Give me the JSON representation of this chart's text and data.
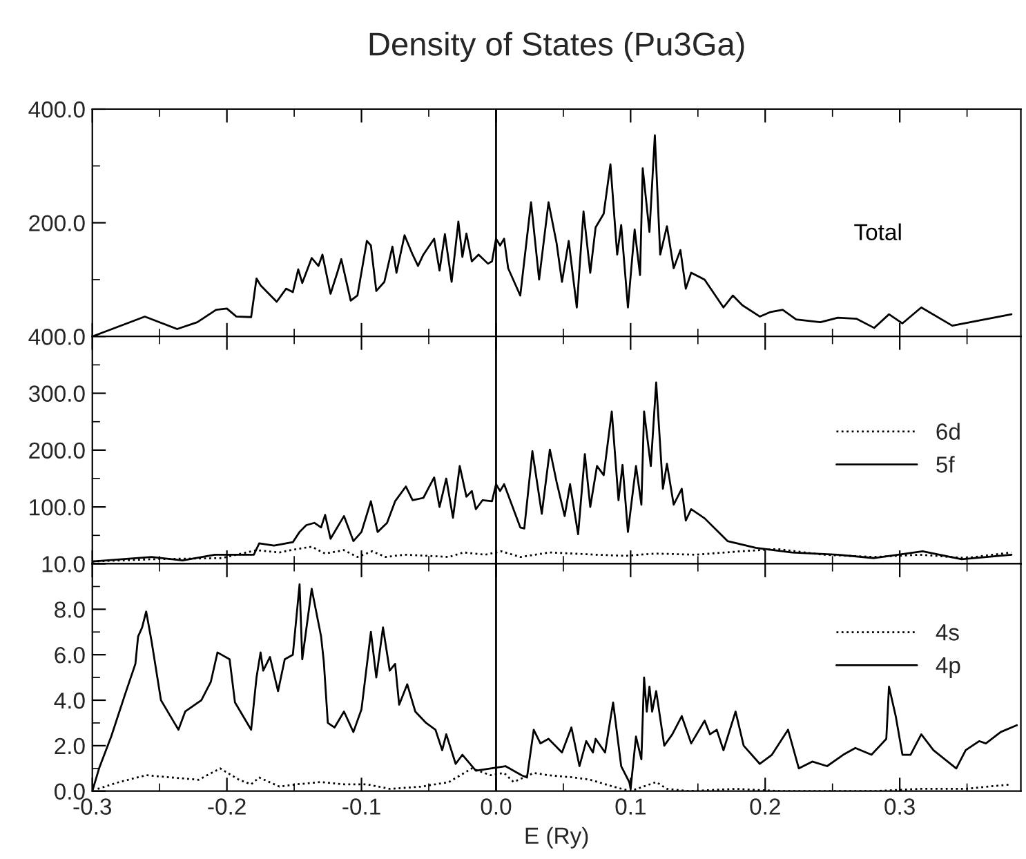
{
  "chart_data": [
    {
      "type": "line",
      "title": "Density of States (Pu3Ga)",
      "xlim": [
        -0.3,
        0.39
      ],
      "xticks": [
        {
          "value": -0.3,
          "label": null
        },
        {
          "value": -0.2,
          "label": null
        },
        {
          "value": -0.1,
          "label": null
        },
        {
          "value": 0,
          "label": null
        },
        {
          "value": 0.1,
          "label": null
        },
        {
          "value": 0.2,
          "label": null
        },
        {
          "value": 0.3,
          "label": null
        }
      ],
      "ylim": [
        0,
        400
      ],
      "yticks": [
        {
          "value": 0,
          "label": null
        },
        {
          "value": 200,
          "label": "200.0"
        },
        {
          "value": 400,
          "label": "400.0"
        }
      ],
      "tick_labels": "y",
      "legend": false,
      "ref_lines": [
        {
          "axis": "x",
          "value": 0,
          "color": "#000000"
        }
      ],
      "series": [
        {
          "name": "Total",
          "color": "#000000",
          "line_style": "solid",
          "x": [
            -0.3,
            -0.261,
            -0.237,
            -0.222,
            -0.208,
            -0.2,
            -0.193,
            -0.182,
            -0.178,
            -0.175,
            -0.163,
            -0.156,
            -0.151,
            -0.147,
            -0.144,
            -0.137,
            -0.132,
            -0.129,
            -0.123,
            -0.118,
            -0.115,
            -0.108,
            -0.103,
            -0.096,
            -0.093,
            -0.089,
            -0.083,
            -0.077,
            -0.074,
            -0.068,
            -0.062,
            -0.058,
            -0.054,
            -0.046,
            -0.042,
            -0.038,
            -0.033,
            -0.028,
            -0.025,
            -0.022,
            -0.018,
            -0.013,
            -0.006,
            -0.003,
            0.0,
            0.003,
            0.006,
            0.009,
            0.018,
            0.026,
            0.032,
            0.039,
            0.045,
            0.049,
            0.054,
            0.06,
            0.065,
            0.07,
            0.074,
            0.08,
            0.085,
            0.09,
            0.093,
            0.098,
            0.103,
            0.107,
            0.109,
            0.114,
            0.118,
            0.122,
            0.127,
            0.132,
            0.137,
            0.141,
            0.145,
            0.155,
            0.169,
            0.176,
            0.183,
            0.196,
            0.204,
            0.213,
            0.223,
            0.241,
            0.254,
            0.268,
            0.281,
            0.292,
            0.302,
            0.316,
            0.339,
            0.363,
            0.383
          ],
          "values": [
            0,
            35,
            13,
            25,
            47,
            49,
            35,
            34,
            102,
            90,
            61,
            84,
            78,
            118,
            94,
            138,
            124,
            144,
            75,
            112,
            136,
            63,
            72,
            168,
            160,
            80,
            96,
            158,
            112,
            178,
            144,
            124,
            144,
            172,
            116,
            180,
            96,
            202,
            140,
            181,
            132,
            144,
            128,
            132,
            172,
            160,
            172,
            120,
            72,
            236,
            100,
            236,
            164,
            96,
            168,
            51,
            220,
            112,
            192,
            216,
            303,
            144,
            196,
            51,
            188,
            108,
            296,
            184,
            354,
            144,
            194,
            120,
            152,
            84,
            112,
            100,
            51,
            72,
            55,
            35,
            43,
            47,
            30,
            25,
            33,
            31,
            15,
            39,
            23,
            51,
            19,
            30,
            39
          ]
        }
      ]
    },
    {
      "type": "line",
      "xlim": [
        -0.3,
        0.39
      ],
      "xticks": [
        {
          "value": -0.3,
          "label": null
        },
        {
          "value": -0.2,
          "label": null
        },
        {
          "value": -0.1,
          "label": null
        },
        {
          "value": 0,
          "label": null
        },
        {
          "value": 0.1,
          "label": null
        },
        {
          "value": 0.2,
          "label": null
        },
        {
          "value": 0.3,
          "label": null
        }
      ],
      "ylim": [
        0,
        400
      ],
      "yticks": [
        {
          "value": 0,
          "label": null
        },
        {
          "value": 100,
          "label": "100.0"
        },
        {
          "value": 200,
          "label": "200.0"
        },
        {
          "value": 300,
          "label": "300.0"
        },
        {
          "value": 400,
          "label": "400.0"
        }
      ],
      "tick_labels": "y",
      "legend": "right",
      "ref_lines": [
        {
          "axis": "x",
          "value": 0,
          "color": "#000000"
        }
      ],
      "series": [
        {
          "name": "6d",
          "color": "#000000",
          "line_style": "dotted",
          "x": [
            -0.3,
            -0.256,
            -0.204,
            -0.178,
            -0.161,
            -0.148,
            -0.137,
            -0.127,
            -0.113,
            -0.103,
            -0.092,
            -0.082,
            -0.068,
            -0.051,
            -0.035,
            -0.024,
            -0.008,
            0.004,
            0.018,
            0.04,
            0.074,
            0.096,
            0.118,
            0.148,
            0.182,
            0.209,
            0.243,
            0.281,
            0.315,
            0.349,
            0.383
          ],
          "values": [
            4,
            8,
            10,
            24,
            20,
            26,
            30,
            18,
            24,
            12,
            22,
            12,
            16,
            14,
            12,
            20,
            16,
            22,
            12,
            20,
            16,
            14,
            18,
            16,
            22,
            26,
            16,
            12,
            16,
            10,
            20
          ]
        },
        {
          "name": "5f",
          "color": "#000000",
          "line_style": "solid",
          "x": [
            -0.3,
            -0.256,
            -0.233,
            -0.209,
            -0.18,
            -0.176,
            -0.165,
            -0.151,
            -0.146,
            -0.141,
            -0.135,
            -0.13,
            -0.127,
            -0.123,
            -0.113,
            -0.106,
            -0.1,
            -0.093,
            -0.088,
            -0.081,
            -0.075,
            -0.067,
            -0.062,
            -0.054,
            -0.046,
            -0.042,
            -0.037,
            -0.032,
            -0.027,
            -0.022,
            -0.018,
            -0.015,
            -0.01,
            -0.003,
            0.0,
            0.003,
            0.006,
            0.018,
            0.021,
            0.027,
            0.034,
            0.04,
            0.045,
            0.051,
            0.055,
            0.061,
            0.066,
            0.07,
            0.075,
            0.08,
            0.086,
            0.091,
            0.094,
            0.098,
            0.104,
            0.108,
            0.11,
            0.115,
            0.119,
            0.124,
            0.127,
            0.132,
            0.138,
            0.141,
            0.145,
            0.155,
            0.172,
            0.193,
            0.22,
            0.254,
            0.281,
            0.317,
            0.346,
            0.383
          ],
          "values": [
            4,
            12,
            6,
            16,
            16,
            36,
            32,
            38,
            56,
            68,
            72,
            64,
            86,
            44,
            84,
            40,
            56,
            110,
            56,
            72,
            110,
            136,
            112,
            116,
            152,
            100,
            150,
            81,
            172,
            118,
            128,
            96,
            112,
            110,
            140,
            128,
            140,
            64,
            62,
            198,
            88,
            201,
            144,
            84,
            140,
            52,
            193,
            100,
            172,
            156,
            268,
            112,
            174,
            56,
            172,
            104,
            268,
            172,
            319,
            132,
            176,
            104,
            132,
            76,
            96,
            80,
            40,
            28,
            20,
            16,
            10,
            22,
            8,
            16
          ]
        }
      ]
    },
    {
      "type": "line",
      "xlabel": "E (Ry)",
      "xlim": [
        -0.3,
        0.39
      ],
      "xticks": [
        {
          "value": -0.3,
          "label": "-0.3"
        },
        {
          "value": -0.2,
          "label": "-0.2"
        },
        {
          "value": -0.1,
          "label": "-0.1"
        },
        {
          "value": 0,
          "label": "0.0"
        },
        {
          "value": 0.1,
          "label": "0.1"
        },
        {
          "value": 0.2,
          "label": "0.2"
        },
        {
          "value": 0.3,
          "label": "0.3"
        }
      ],
      "ylim": [
        0,
        10
      ],
      "yticks": [
        {
          "value": 0,
          "label": "0.0"
        },
        {
          "value": 2,
          "label": "2.0"
        },
        {
          "value": 4,
          "label": "4.0"
        },
        {
          "value": 6,
          "label": "6.0"
        },
        {
          "value": 8,
          "label": "8.0"
        },
        {
          "value": 10,
          "label": "10.0"
        }
      ],
      "legend": "top right",
      "ref_lines": [
        {
          "axis": "x",
          "value": 0,
          "color": "#000000"
        }
      ],
      "series": [
        {
          "name": "4s",
          "color": "#000000",
          "line_style": "dotted",
          "x": [
            -0.296,
            -0.28,
            -0.26,
            -0.241,
            -0.221,
            -0.205,
            -0.191,
            -0.182,
            -0.176,
            -0.161,
            -0.148,
            -0.13,
            -0.113,
            -0.096,
            -0.079,
            -0.055,
            -0.035,
            -0.018,
            -0.004,
            0.006,
            0.013,
            0.028,
            0.039,
            0.058,
            0.07,
            0.087,
            0.1,
            0.119,
            0.127,
            0.144,
            0.178,
            0.212,
            0.246,
            0.281,
            0.315,
            0.349,
            0.383
          ],
          "values": [
            0.1,
            0.4,
            0.7,
            0.6,
            0.5,
            1.0,
            0.5,
            0.3,
            0.6,
            0.2,
            0.3,
            0.4,
            0.3,
            0.3,
            0.1,
            0.2,
            0.4,
            1.0,
            0.7,
            0.8,
            0.4,
            0.8,
            0.7,
            0.6,
            0.5,
            0.2,
            0.0,
            0.4,
            0.1,
            0.0,
            0.1,
            0.0,
            0.0,
            0.0,
            0.1,
            0.1,
            0.3
          ]
        },
        {
          "name": "4p",
          "color": "#000000",
          "line_style": "solid",
          "x": [
            -0.3,
            -0.295,
            -0.286,
            -0.276,
            -0.268,
            -0.266,
            -0.263,
            -0.26,
            -0.256,
            -0.249,
            -0.236,
            -0.231,
            -0.219,
            -0.212,
            -0.207,
            -0.198,
            -0.194,
            -0.182,
            -0.178,
            -0.175,
            -0.173,
            -0.168,
            -0.162,
            -0.157,
            -0.151,
            -0.146,
            -0.144,
            -0.137,
            -0.13,
            -0.128,
            -0.125,
            -0.12,
            -0.113,
            -0.106,
            -0.1,
            -0.093,
            -0.089,
            -0.084,
            -0.079,
            -0.075,
            -0.072,
            -0.066,
            -0.06,
            -0.052,
            -0.045,
            -0.04,
            -0.037,
            -0.03,
            -0.025,
            -0.015,
            -0.004,
            0.007,
            0.019,
            0.023,
            0.028,
            0.033,
            0.039,
            0.049,
            0.056,
            0.062,
            0.067,
            0.072,
            0.074,
            0.081,
            0.087,
            0.093,
            0.099,
            0.1,
            0.104,
            0.108,
            0.11,
            0.112,
            0.114,
            0.116,
            0.119,
            0.125,
            0.131,
            0.138,
            0.145,
            0.155,
            0.159,
            0.164,
            0.169,
            0.178,
            0.184,
            0.196,
            0.205,
            0.217,
            0.225,
            0.235,
            0.246,
            0.258,
            0.267,
            0.279,
            0.29,
            0.292,
            0.297,
            0.302,
            0.308,
            0.316,
            0.325,
            0.342,
            0.349,
            0.359,
            0.364,
            0.375,
            0.387
          ],
          "values": [
            0,
            1.0,
            2.4,
            4.2,
            5.6,
            6.8,
            7.2,
            7.9,
            6.6,
            4.0,
            2.7,
            3.5,
            4.0,
            4.8,
            6.1,
            5.8,
            3.9,
            2.7,
            5.0,
            6.1,
            5.3,
            5.9,
            4.4,
            5.8,
            6.0,
            9.1,
            5.8,
            8.9,
            6.8,
            5.7,
            3.0,
            2.8,
            3.5,
            2.6,
            3.6,
            7.0,
            5.0,
            7.2,
            5.3,
            5.6,
            3.8,
            4.7,
            3.5,
            3.0,
            2.7,
            1.8,
            2.5,
            1.2,
            1.6,
            0.9,
            1.0,
            1.1,
            0.7,
            0.6,
            2.7,
            2.1,
            2.3,
            1.7,
            2.8,
            1.1,
            2.2,
            1.7,
            2.3,
            1.7,
            3.9,
            1.1,
            0.4,
            0.1,
            2.4,
            1.4,
            5.0,
            3.5,
            4.6,
            3.5,
            4.4,
            2.0,
            2.5,
            3.3,
            2.1,
            3.1,
            2.5,
            2.7,
            1.8,
            3.5,
            2.0,
            1.2,
            1.6,
            2.7,
            1.0,
            1.3,
            1.1,
            1.6,
            1.9,
            1.6,
            2.3,
            4.6,
            3.3,
            1.6,
            1.6,
            2.5,
            1.8,
            1.0,
            1.8,
            2.2,
            2.1,
            2.6,
            2.9
          ]
        }
      ]
    }
  ]
}
